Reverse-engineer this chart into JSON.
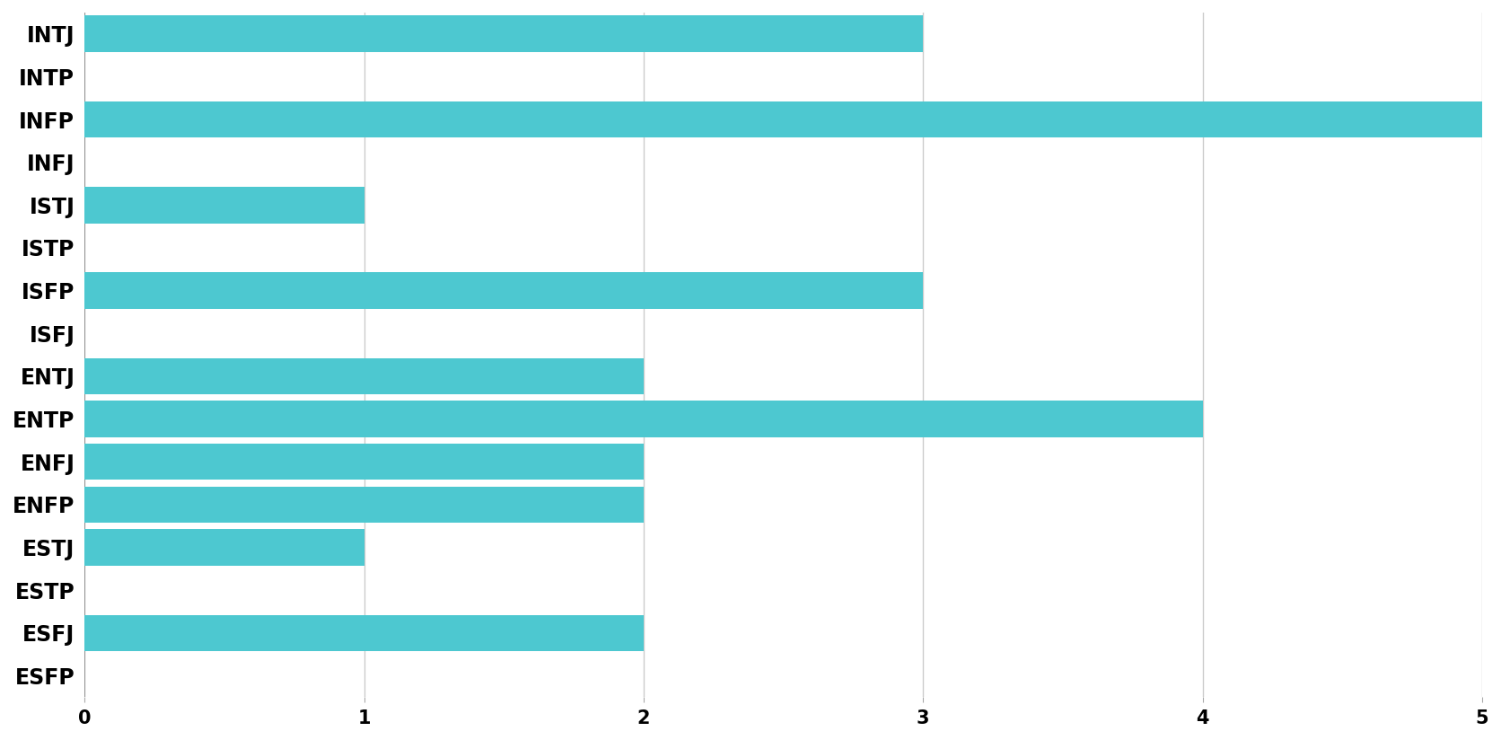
{
  "categories": [
    "INTJ",
    "INTP",
    "INFP",
    "INFJ",
    "ISTJ",
    "ISTP",
    "ISFP",
    "ISFJ",
    "ENTJ",
    "ENTP",
    "ENFJ",
    "ENFP",
    "ESTJ",
    "ESTP",
    "ESFJ",
    "ESFP"
  ],
  "values": [
    3,
    0,
    5,
    0,
    1,
    0,
    3,
    0,
    2,
    4,
    2,
    2,
    1,
    0,
    2,
    0
  ],
  "bar_color": "#4dc8d0",
  "background_color": "#ffffff",
  "xlim": [
    0,
    5
  ],
  "xticks": [
    0,
    1,
    2,
    3,
    4,
    5
  ],
  "grid_color": "#cccccc",
  "bar_height": 0.85,
  "label_fontsize": 17,
  "tick_fontsize": 15,
  "label_fontweight": "bold"
}
